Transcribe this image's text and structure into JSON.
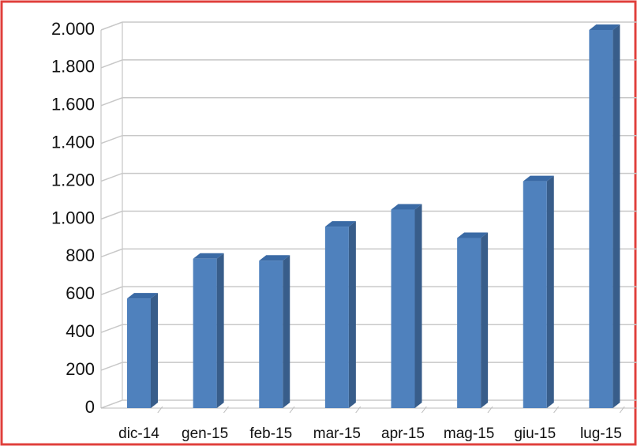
{
  "chart_data": {
    "type": "bar",
    "categories": [
      "dic-14",
      "gen-15",
      "feb-15",
      "mar-15",
      "apr-15",
      "mag-15",
      "giu-15",
      "lug-15"
    ],
    "values": [
      580,
      790,
      780,
      960,
      1050,
      900,
      1200,
      2000
    ],
    "color": "#4f81bd",
    "ylim": [
      0,
      2000
    ],
    "yticks": [
      0,
      200,
      400,
      600,
      800,
      {
        "value": 1000,
        "label": "1.000"
      },
      {
        "value": 1200,
        "label": "1.200"
      },
      {
        "value": 1400,
        "label": "1.400"
      },
      {
        "value": 1600,
        "label": "1.600"
      },
      {
        "value": 1800,
        "label": "1.800"
      },
      {
        "value": 2000,
        "label": "2.000"
      }
    ],
    "grid": true
  }
}
